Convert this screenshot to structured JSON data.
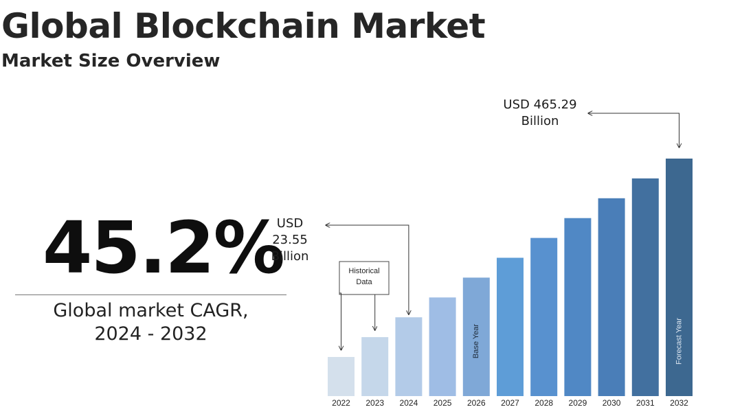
{
  "header": {
    "title": "Global Blockchain Market",
    "subtitle": "Market Size Overview"
  },
  "cagr": {
    "value": "45.2%",
    "label_line1": "Global market CAGR,",
    "label_line2": "2024 - 2032"
  },
  "colors": {
    "bars": [
      "#d4e0ec",
      "#c5d7ea",
      "#b3cbe8",
      "#9fbde5",
      "#7fa8d7",
      "#5e9dd7",
      "#5891cf",
      "#5088c5",
      "#4a7eb8",
      "#42709f",
      "#3d6890"
    ]
  },
  "chart_data": {
    "type": "bar",
    "categories": [
      "2022",
      "2023",
      "2024",
      "2025",
      "2026",
      "2027",
      "2028",
      "2029",
      "2030",
      "2031",
      "2032"
    ],
    "values": [
      null,
      null,
      23.55,
      null,
      null,
      null,
      null,
      null,
      null,
      null,
      465.29
    ],
    "annotations": {
      "start": {
        "category": "2024",
        "line1": "USD",
        "line2": "23.55",
        "line3": "Billion"
      },
      "end": {
        "category": "2032",
        "line1": "USD 465.29",
        "line2": "Billion"
      },
      "historical": {
        "line1": "Historical",
        "line2": "Data",
        "categories": [
          "2022",
          "2023",
          "2024"
        ]
      },
      "base_year": {
        "category": "2026",
        "label": "Base Year"
      },
      "forecast_year": {
        "category": "2032",
        "label": "Forecast Year"
      }
    },
    "title": "",
    "xlabel": "",
    "ylabel": ""
  }
}
